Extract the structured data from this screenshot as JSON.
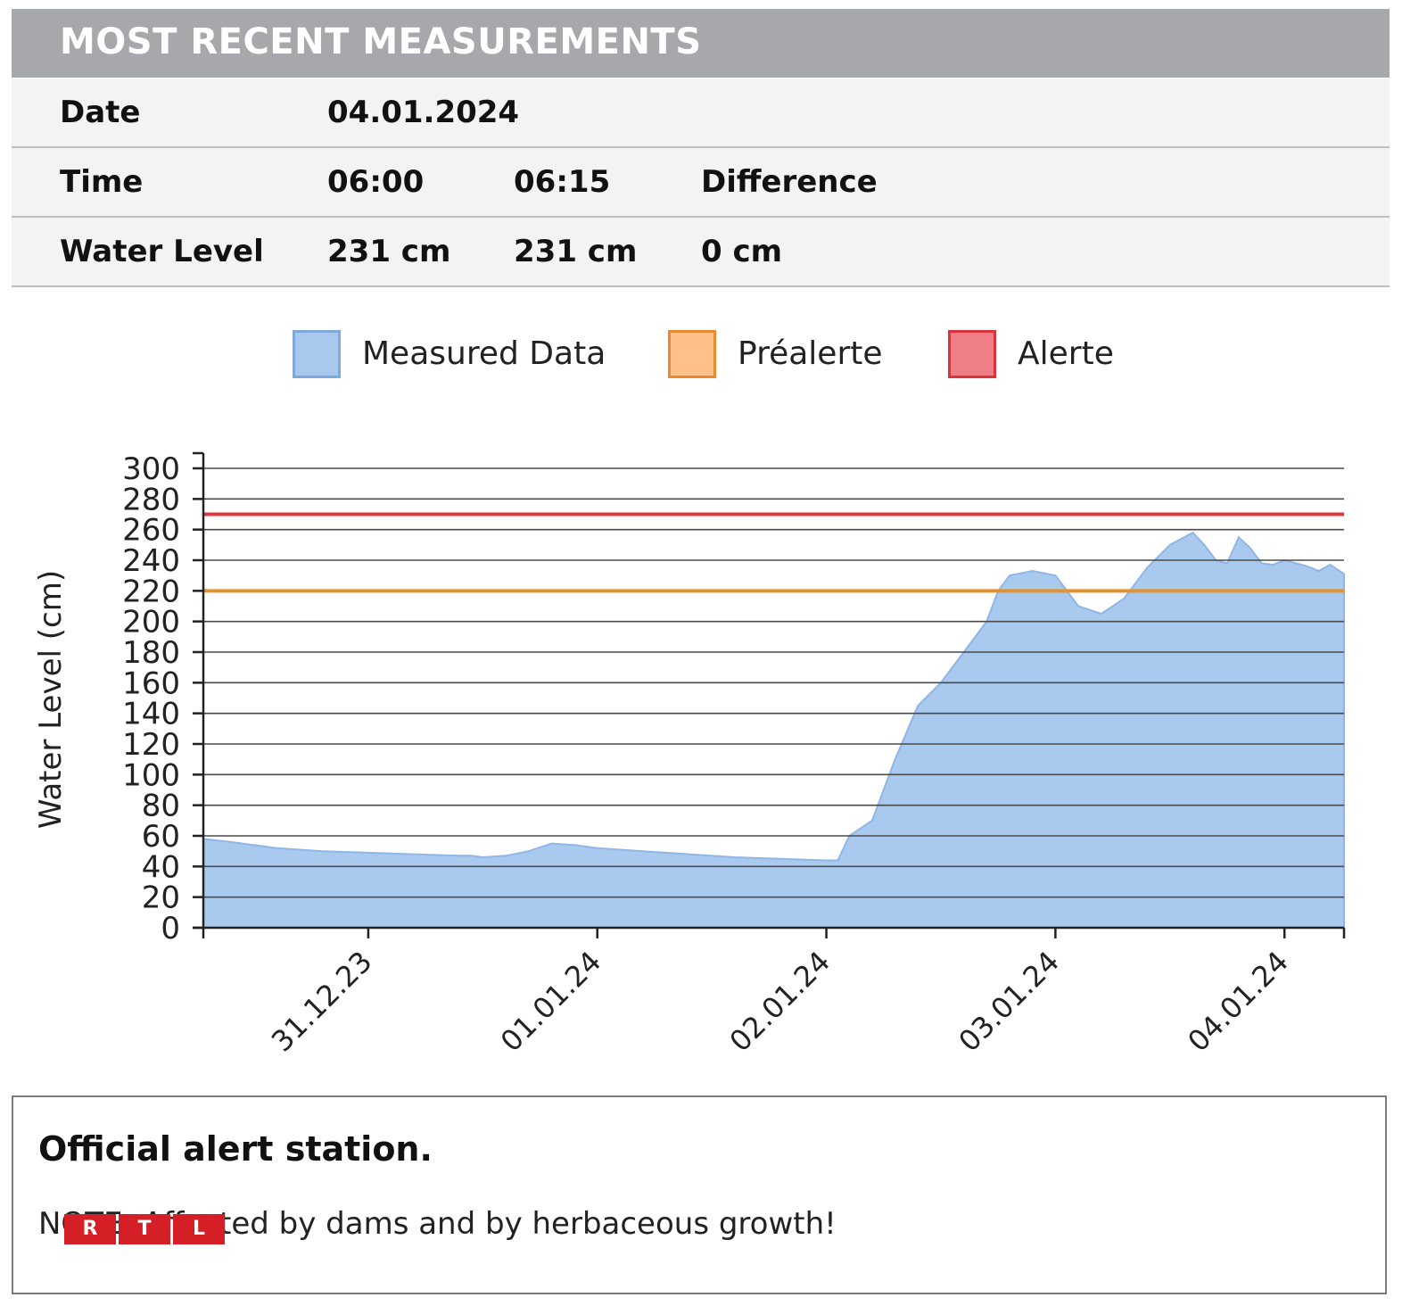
{
  "header": {
    "title": "MOST RECENT MEASUREMENTS"
  },
  "measurements": {
    "date": {
      "label": "Date",
      "value": "04.01.2024"
    },
    "time": {
      "label": "Time",
      "t1": "06:00",
      "t2": "06:15",
      "diff": "Difference"
    },
    "level": {
      "label": "Water Level",
      "v1": "231 cm",
      "v2": "231 cm",
      "diff": "0 cm"
    }
  },
  "legend": [
    {
      "label": "Measured Data",
      "fill": "#a8c8ee",
      "stroke": "#7fa9dd"
    },
    {
      "label": "Préalerte",
      "fill": "#ffc08a",
      "stroke": "#e88a32"
    },
    {
      "label": "Alerte",
      "fill": "#f07e86",
      "stroke": "#d9333d"
    }
  ],
  "colors": {
    "area_fill": "#a9c9ef",
    "area_stroke": "#8fb6e6",
    "prealert": "#e3922d",
    "alert": "#e0363d",
    "grid": "#4a4a4a",
    "axis": "#222222"
  },
  "chart_data": {
    "type": "area",
    "ylabel": "Water Level (cm)",
    "xlabel": "",
    "ylim": [
      0,
      300
    ],
    "xlim": [
      -0.72,
      4.26
    ],
    "yticks": [
      0,
      20,
      40,
      60,
      80,
      100,
      120,
      140,
      160,
      180,
      200,
      220,
      240,
      260,
      280,
      300
    ],
    "xticks": [
      {
        "value": 0,
        "label": "31.12.23"
      },
      {
        "value": 1,
        "label": "01.01.24"
      },
      {
        "value": 2,
        "label": "02.01.24"
      },
      {
        "value": 3,
        "label": "03.01.24"
      },
      {
        "value": 4,
        "label": "04.01.24"
      }
    ],
    "thresholds": [
      {
        "name": "Préalerte",
        "value": 220
      },
      {
        "name": "Alerte",
        "value": 270
      }
    ],
    "series": [
      {
        "name": "Measured Data",
        "x": [
          -0.72,
          -0.6,
          -0.4,
          -0.2,
          0.0,
          0.2,
          0.4,
          0.45,
          0.5,
          0.6,
          0.7,
          0.8,
          0.9,
          1.0,
          1.2,
          1.4,
          1.6,
          1.8,
          2.0,
          2.05,
          2.1,
          2.2,
          2.3,
          2.4,
          2.5,
          2.6,
          2.7,
          2.75,
          2.8,
          2.9,
          3.0,
          3.1,
          3.2,
          3.3,
          3.4,
          3.5,
          3.6,
          3.65,
          3.7,
          3.75,
          3.8,
          3.85,
          3.9,
          3.95,
          4.0,
          4.05,
          4.1,
          4.15,
          4.2,
          4.26
        ],
        "values": [
          58,
          56,
          52,
          50,
          49,
          48,
          47,
          47,
          46,
          47,
          50,
          55,
          54,
          52,
          50,
          48,
          46,
          45,
          44,
          44,
          60,
          70,
          110,
          145,
          160,
          180,
          200,
          220,
          230,
          233,
          230,
          210,
          205,
          215,
          235,
          250,
          258,
          250,
          240,
          238,
          255,
          248,
          238,
          237,
          240,
          238,
          236,
          233,
          237,
          231
        ]
      }
    ]
  },
  "note": {
    "title": "Official alert station.",
    "text": "NOTE: Affected by dams and by herbaceous growth!"
  },
  "watermark": {
    "letters": [
      "R",
      "T",
      "L"
    ]
  }
}
